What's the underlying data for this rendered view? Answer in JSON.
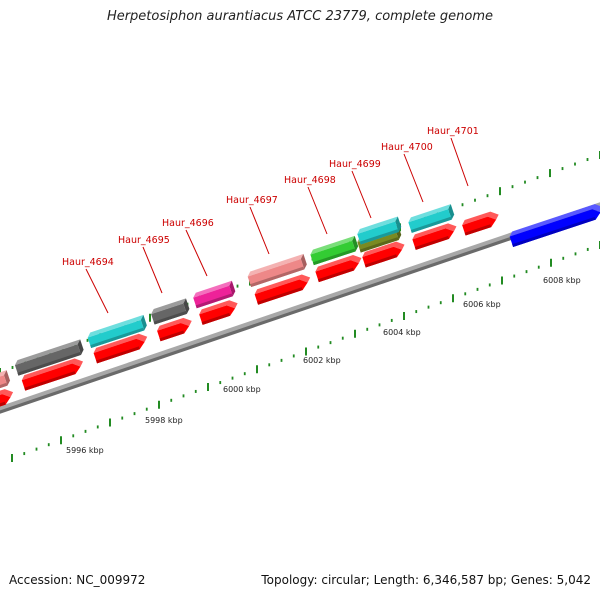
{
  "title": "Herpetosiphon aurantiacus ATCC 23779, complete genome",
  "footer": {
    "accession": "Accession: NC_009972",
    "summary": "Topology: circular; Length: 6,346,587 bp; Genes: 5,042"
  },
  "colors": {
    "label": "#cc0000",
    "tick": "#228b22",
    "backbone": "#a8a8a8",
    "cds": "#ff0000",
    "teal": "#22cccc",
    "gray": "#666666",
    "pink": "#ee2299",
    "salmon": "#ee8888",
    "green": "#33cc33",
    "olive": "#7a8a22",
    "blue": "#0000ff"
  },
  "scale_labels": [
    "5996 kbp",
    "5998 kbp",
    "6000 kbp",
    "6002 kbp",
    "6004 kbp",
    "6006 kbp",
    "6008 kbp"
  ],
  "gene_labels": [
    "Haur_4694",
    "Haur_4695",
    "Haur_4696",
    "Haur_4697",
    "Haur_4698",
    "Haur_4699",
    "Haur_4700",
    "Haur_4701"
  ]
}
